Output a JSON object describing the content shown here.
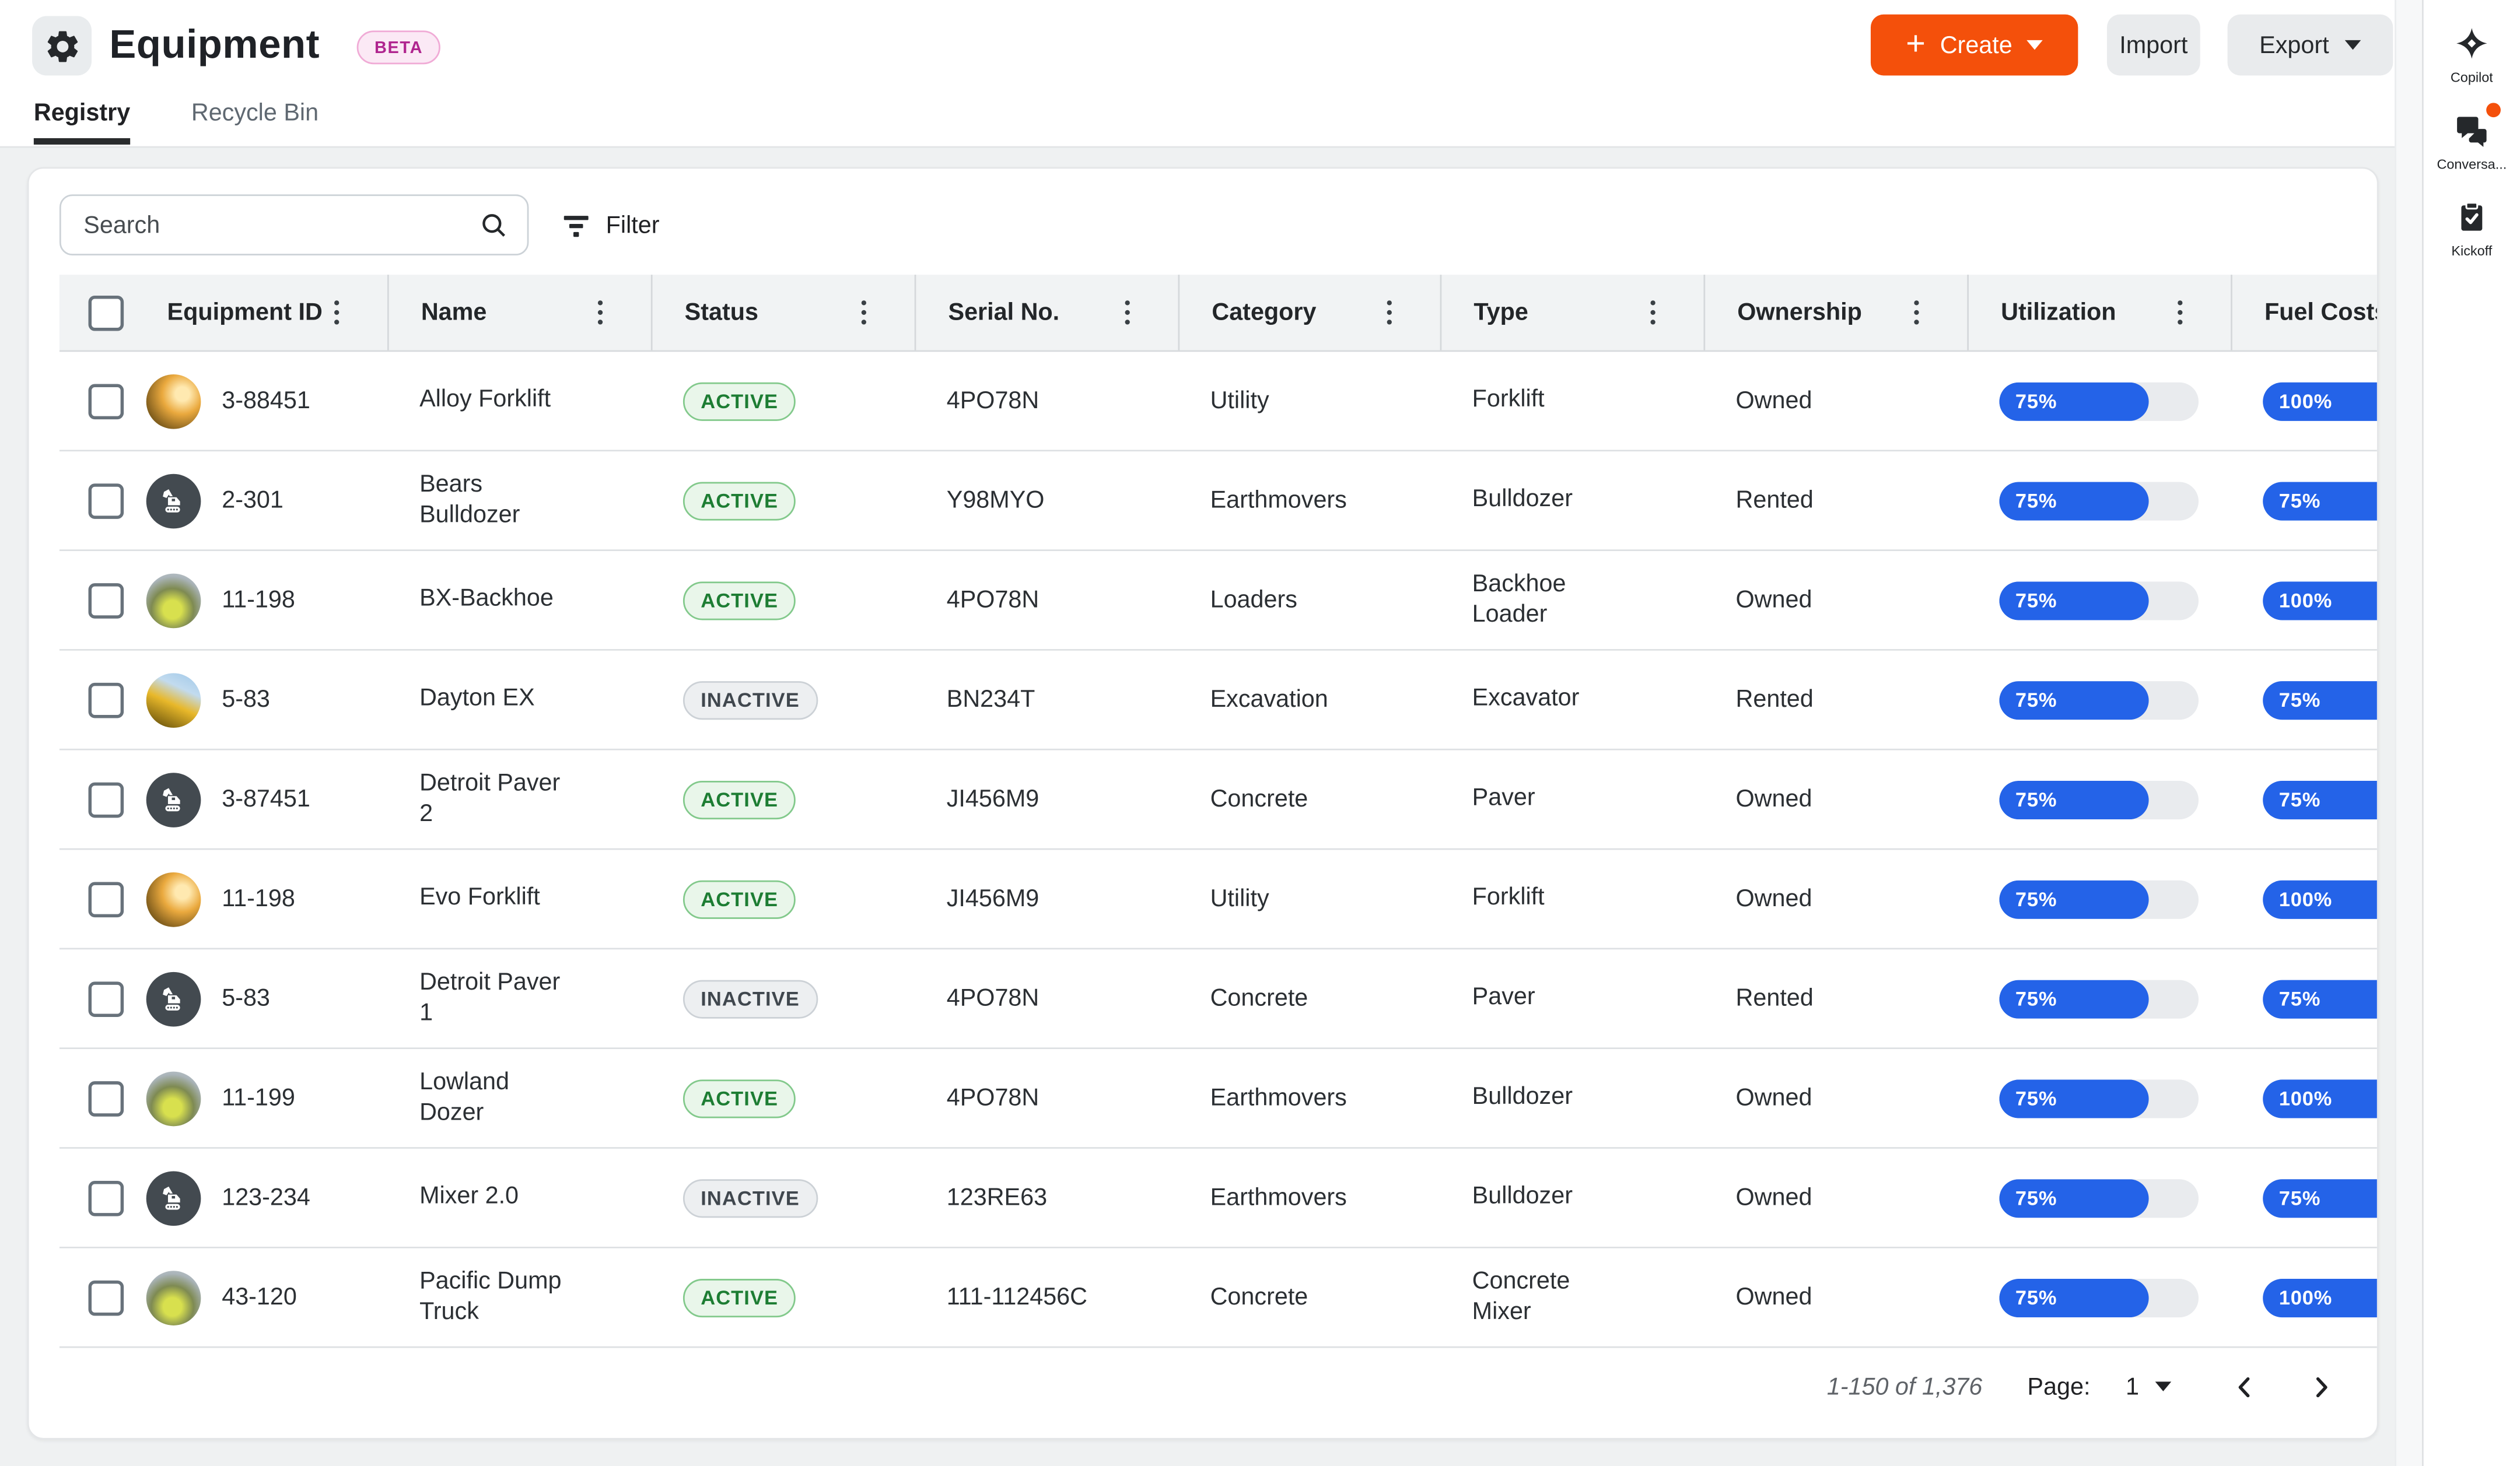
{
  "app": {
    "icon": "gear-icon",
    "title": "Equipment",
    "beta_badge": "BETA"
  },
  "toolbar": {
    "create_label": "Create",
    "import_label": "Import",
    "export_label": "Export"
  },
  "tabs": [
    {
      "label": "Registry",
      "active": true
    },
    {
      "label": "Recycle Bin",
      "active": false
    }
  ],
  "search": {
    "placeholder": "Search"
  },
  "filter": {
    "label": "Filter"
  },
  "table": {
    "columns": [
      "Equipment ID",
      "Name",
      "Status",
      "Serial No.",
      "Category",
      "Type",
      "Ownership",
      "Utilization",
      "Fuel Costs"
    ],
    "rows": [
      {
        "equipment_id": "3-88451",
        "name": "Alloy Forklift",
        "status": "ACTIVE",
        "serial_no": "4PO78N",
        "category": "Utility",
        "type": "Forklift",
        "ownership": "Owned",
        "utilization_pct": 75,
        "fuel_costs_pct": 100,
        "avatar": "photo-bulldozer"
      },
      {
        "equipment_id": "2-301",
        "name": "Bears Bulldozer",
        "status": "ACTIVE",
        "serial_no": "Y98MYO",
        "category": "Earthmovers",
        "type": "Bulldozer",
        "ownership": "Rented",
        "utilization_pct": 75,
        "fuel_costs_pct": 75,
        "avatar": "icon-excavator"
      },
      {
        "equipment_id": "11-198",
        "name": "BX-Backhoe",
        "status": "ACTIVE",
        "serial_no": "4PO78N",
        "category": "Loaders",
        "type": "Backhoe Loader",
        "ownership": "Owned",
        "utilization_pct": 75,
        "fuel_costs_pct": 100,
        "avatar": "photo-forklift"
      },
      {
        "equipment_id": "5-83",
        "name": "Dayton EX",
        "status": "INACTIVE",
        "serial_no": "BN234T",
        "category": "Excavation",
        "type": "Excavator",
        "ownership": "Rented",
        "utilization_pct": 75,
        "fuel_costs_pct": 75,
        "avatar": "photo-excavator"
      },
      {
        "equipment_id": "3-87451",
        "name": "Detroit Paver 2",
        "status": "ACTIVE",
        "serial_no": "JI456M9",
        "category": "Concrete",
        "type": "Paver",
        "ownership": "Owned",
        "utilization_pct": 75,
        "fuel_costs_pct": 75,
        "avatar": "icon-excavator"
      },
      {
        "equipment_id": "11-198",
        "name": "Evo Forklift",
        "status": "ACTIVE",
        "serial_no": "JI456M9",
        "category": "Utility",
        "type": "Forklift",
        "ownership": "Owned",
        "utilization_pct": 75,
        "fuel_costs_pct": 100,
        "avatar": "photo-bulldozer"
      },
      {
        "equipment_id": "5-83",
        "name": "Detroit Paver 1",
        "status": "INACTIVE",
        "serial_no": "4PO78N",
        "category": "Concrete",
        "type": "Paver",
        "ownership": "Rented",
        "utilization_pct": 75,
        "fuel_costs_pct": 75,
        "avatar": "icon-excavator"
      },
      {
        "equipment_id": "11-199",
        "name": "Lowland Dozer",
        "status": "ACTIVE",
        "serial_no": "4PO78N",
        "category": "Earthmovers",
        "type": "Bulldozer",
        "ownership": "Owned",
        "utilization_pct": 75,
        "fuel_costs_pct": 100,
        "avatar": "photo-forklift"
      },
      {
        "equipment_id": "123-234",
        "name": "Mixer 2.0",
        "status": "INACTIVE",
        "serial_no": "123RE63",
        "category": "Earthmovers",
        "type": "Bulldozer",
        "ownership": "Owned",
        "utilization_pct": 75,
        "fuel_costs_pct": 75,
        "avatar": "icon-excavator"
      },
      {
        "equipment_id": "43-120",
        "name": "Pacific Dump Truck",
        "status": "ACTIVE",
        "serial_no": "111-112456C",
        "category": "Concrete",
        "type": "Concrete Mixer",
        "ownership": "Owned",
        "utilization_pct": 75,
        "fuel_costs_pct": 100,
        "avatar": "photo-forklift"
      }
    ]
  },
  "pagination": {
    "range": "1-150 of 1,376",
    "page_label": "Page:",
    "current_page": "1"
  },
  "rail": {
    "items": [
      {
        "icon": "sparkle-icon",
        "label": "Copilot",
        "has_notification": false
      },
      {
        "icon": "chat-icon",
        "label": "Conversa...",
        "has_notification": true
      },
      {
        "icon": "clipboard-check-icon",
        "label": "Kickoff",
        "has_notification": false
      }
    ]
  },
  "colors": {
    "accent_orange": "#F4500B",
    "progress_blue": "#2463E8",
    "active_green_text": "#1D7D33",
    "beta_pink_text": "#B0258F",
    "avatar_slate": "#434A50",
    "header_gray": "#F1F3F4",
    "page_background": "#EFF1F2"
  }
}
